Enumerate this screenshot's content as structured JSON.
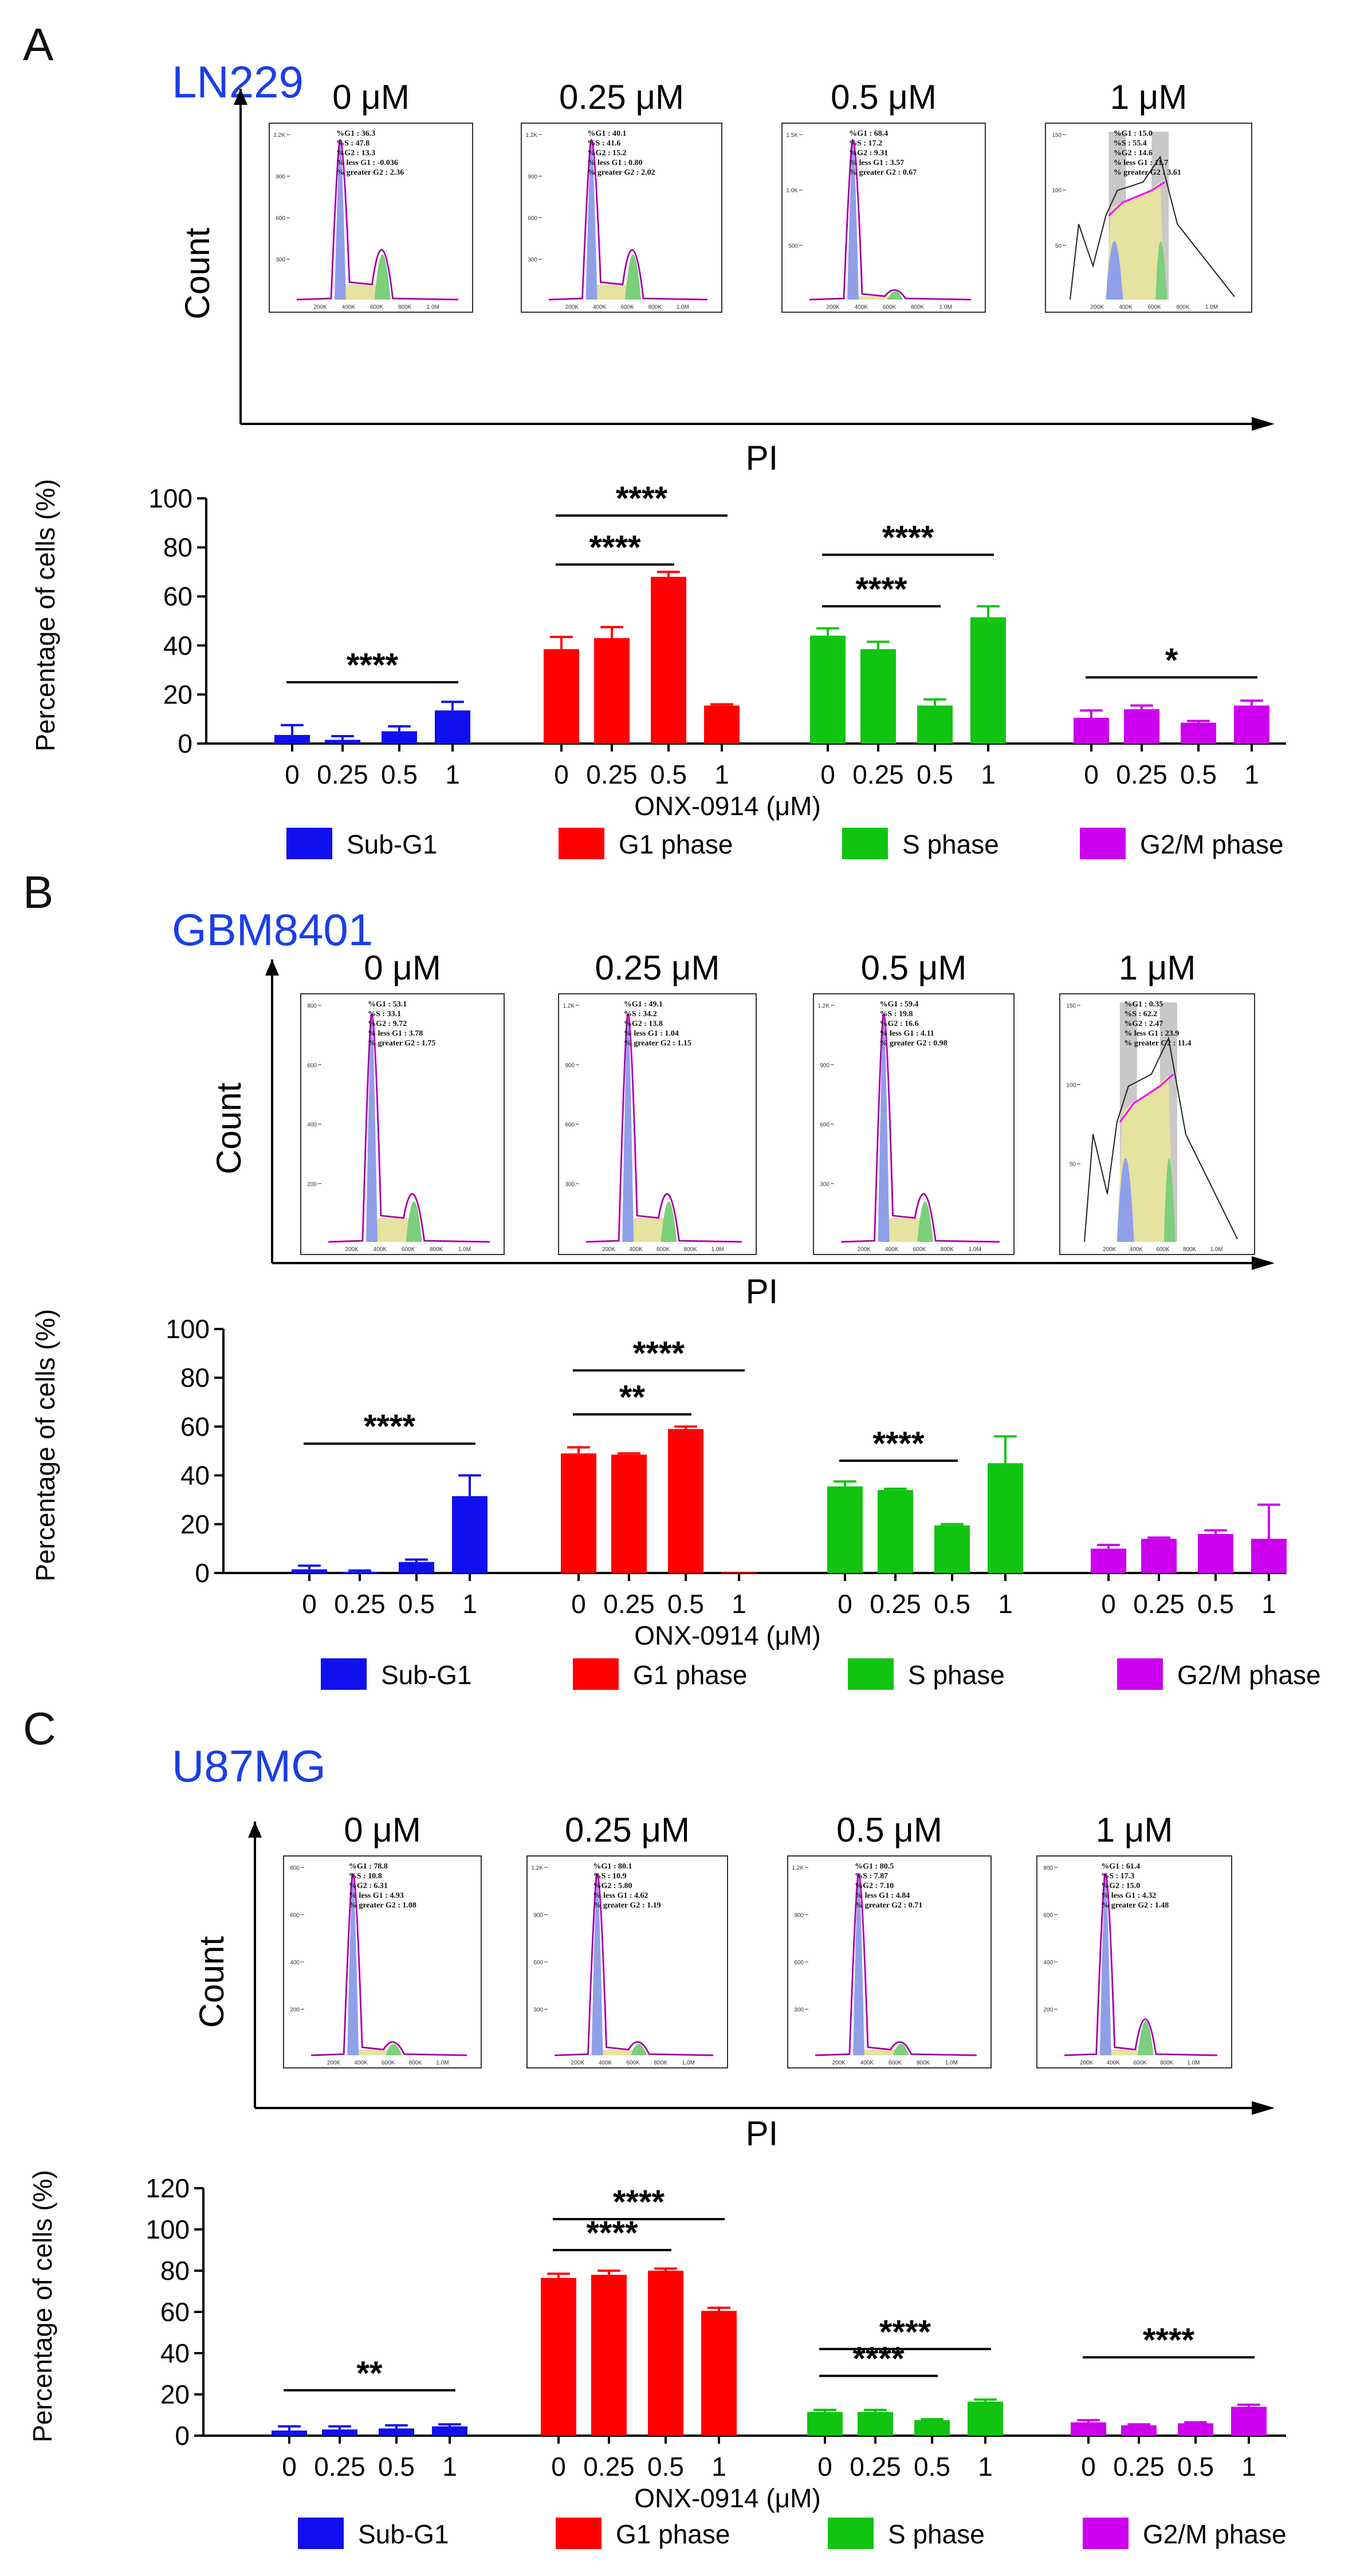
{
  "colors": {
    "subg1": "#1010ee",
    "g1": "#ff0000",
    "s": "#11c411",
    "g2m": "#cc00ee",
    "cellline": "#1a3ee6",
    "hist_magenta": "#ff00ff",
    "fill_blue": "#8fa0e8",
    "fill_yellow": "#e6e2a0",
    "fill_green": "#7ccf7c"
  },
  "legend": [
    {
      "key": "subg1",
      "label": "Sub-G1"
    },
    {
      "key": "g1",
      "label": "G1 phase"
    },
    {
      "key": "s",
      "label": "S phase"
    },
    {
      "key": "g2m",
      "label": "G2/M phase"
    }
  ],
  "axis_labels": {
    "count": "Count",
    "pi": "PI",
    "ylabel": "Percentage of cells (%)",
    "xlabel": "ONX-0914 (μM)"
  },
  "panels": [
    {
      "letter": "A",
      "cell_line": "LN229",
      "histograms": [
        {
          "dose": "0 μM",
          "stats": [
            "%G1 : 36.3",
            "%S : 47.8",
            "%G2 : 13.3",
            "% less G1 : -0.036",
            "% greater G2 : 2.36"
          ],
          "yticks": [
            "1.2K",
            "900",
            "600",
            "300"
          ]
        },
        {
          "dose": "0.25 μM",
          "stats": [
            "%G1 : 40.1",
            "%S : 41.6",
            "%G2 : 15.2",
            "% less G1 : 0.80",
            "% greater G2 : 2.02"
          ],
          "yticks": [
            "1.2K",
            "900",
            "600",
            "300"
          ]
        },
        {
          "dose": "0.5 μM",
          "stats": [
            "%G1 : 68.4",
            "%S : 17.2",
            "%G2 : 9.31",
            "% less G1 : 3.57",
            "% greater G2 : 0.67"
          ],
          "yticks": [
            "1.5K",
            "1.0K",
            "500"
          ]
        },
        {
          "dose": "1 μM",
          "stats": [
            "%G1 : 15.0",
            "%S : 55.4",
            "%G2 : 14.6",
            "% less G1 : 11.7",
            "% greater G2 : 3.61"
          ],
          "yticks": [
            "150",
            "100",
            "50"
          ]
        }
      ],
      "xticks": [
        "200K",
        "400K",
        "600K",
        "800K",
        "1.0M"
      ],
      "chart_data": {
        "type": "bar",
        "categories": [
          "0",
          "0.25",
          "0.5",
          "1"
        ],
        "series": [
          {
            "name": "Sub-G1",
            "values": [
              3.5,
              1.5,
              5,
              13.5
            ],
            "errors": [
              4,
              1.5,
              2,
              3.5
            ]
          },
          {
            "name": "G1 phase",
            "values": [
              38.5,
              43,
              68,
              15.5
            ],
            "errors": [
              5,
              4.5,
              2,
              0.5
            ]
          },
          {
            "name": "S phase",
            "values": [
              44,
              38.5,
              15.5,
              51.5
            ],
            "errors": [
              3,
              3,
              2.5,
              4.5
            ]
          },
          {
            "name": "G2/M phase",
            "values": [
              10.5,
              14,
              8.5,
              15.5
            ],
            "errors": [
              3,
              1.5,
              0.7,
              2
            ]
          }
        ],
        "ylim": [
          0,
          100
        ],
        "yticks": [
          0,
          20,
          40,
          60,
          80,
          100
        ],
        "significance": [
          {
            "series": 0,
            "from": 0,
            "to": 3,
            "label": "****",
            "y": 25
          },
          {
            "series": 1,
            "from": 0,
            "to": 2,
            "label": "****",
            "y": 73
          },
          {
            "series": 1,
            "from": 0,
            "to": 3,
            "label": "****",
            "y": 93
          },
          {
            "series": 2,
            "from": 0,
            "to": 2,
            "label": "****",
            "y": 56
          },
          {
            "series": 2,
            "from": 0,
            "to": 3,
            "label": "****",
            "y": 77
          },
          {
            "series": 3,
            "from": 0,
            "to": 3,
            "label": "*",
            "y": 27
          }
        ]
      }
    },
    {
      "letter": "B",
      "cell_line": "GBM8401",
      "histograms": [
        {
          "dose": "0 μM",
          "stats": [
            "%G1 : 53.1",
            "%S : 33.1",
            "%G2 : 9.72",
            "% less G1 : 3.78",
            "% greater G2 : 1.75"
          ],
          "yticks": [
            "800",
            "600",
            "400",
            "200"
          ]
        },
        {
          "dose": "0.25 μM",
          "stats": [
            "%G1 : 49.1",
            "%S : 34.2",
            "%G2 : 13.8",
            "% less G1 : 1.04",
            "% greater G2 : 1.15"
          ],
          "yticks": [
            "1.2K",
            "900",
            "600",
            "300"
          ]
        },
        {
          "dose": "0.5 μM",
          "stats": [
            "%G1 : 59.4",
            "%S : 19.8",
            "%G2 : 16.6",
            "% less G1 : 4.11",
            "% greater G2 : 0.98"
          ],
          "yticks": [
            "1.2K",
            "900",
            "600",
            "300"
          ]
        },
        {
          "dose": "1 μM",
          "stats": [
            "%G1 : 0.35",
            "%S : 62.2",
            "%G2 : 2.47",
            "% less G1 : 23.9",
            "% greater G2 : 11.4"
          ],
          "yticks": [
            "150",
            "100",
            "50"
          ]
        }
      ],
      "xticks": [
        "200K",
        "400K",
        "600K",
        "800K",
        "1.0M"
      ],
      "chart_data": {
        "type": "bar",
        "categories": [
          "0",
          "0.25",
          "0.5",
          "1"
        ],
        "series": [
          {
            "name": "Sub-G1",
            "values": [
              1.5,
              0.5,
              4.5,
              31.5
            ],
            "errors": [
              1.5,
              0.5,
              1,
              8.5
            ]
          },
          {
            "name": "G1 phase",
            "values": [
              49,
              48.5,
              59,
              0.3
            ],
            "errors": [
              2.5,
              0.5,
              1,
              0
            ]
          },
          {
            "name": "S phase",
            "values": [
              35.5,
              34,
              19.5,
              45
            ],
            "errors": [
              2,
              0.5,
              0.5,
              11
            ]
          },
          {
            "name": "G2/M phase",
            "values": [
              10,
              14,
              16,
              14
            ],
            "errors": [
              1.5,
              0.5,
              1.5,
              14
            ]
          }
        ],
        "ylim": [
          0,
          100
        ],
        "yticks": [
          0,
          20,
          40,
          60,
          80,
          100
        ],
        "significance": [
          {
            "series": 0,
            "from": 0,
            "to": 3,
            "label": "****",
            "y": 53
          },
          {
            "series": 1,
            "from": 0,
            "to": 2,
            "label": "**",
            "y": 65
          },
          {
            "series": 1,
            "from": 0,
            "to": 3,
            "label": "****",
            "y": 83
          },
          {
            "series": 2,
            "from": 0,
            "to": 2,
            "label": "****",
            "y": 46
          }
        ]
      }
    },
    {
      "letter": "C",
      "cell_line": "U87MG",
      "histograms": [
        {
          "dose": "0 μM",
          "stats": [
            "%G1 : 78.8",
            "%S : 10.8",
            "%G2 : 6.31",
            "% less G1 : 4.93",
            "% greater G2 : 1.08"
          ],
          "yticks": [
            "800",
            "600",
            "400",
            "200"
          ]
        },
        {
          "dose": "0.25 μM",
          "stats": [
            "%G1 : 80.1",
            "%S : 10.9",
            "%G2 : 5.80",
            "% less G1 : 4.62",
            "% greater G2 : 1.19"
          ],
          "yticks": [
            "1.2K",
            "900",
            "600",
            "300"
          ]
        },
        {
          "dose": "0.5 μM",
          "stats": [
            "%G1 : 80.5",
            "%S : 7.87",
            "%G2 : 7.10",
            "% less G1 : 4.84",
            "% greater G2 : 0.71"
          ],
          "yticks": [
            "1.2K",
            "900",
            "600",
            "300"
          ]
        },
        {
          "dose": "1 μM",
          "stats": [
            "%G1 : 61.4",
            "%S : 17.3",
            "%G2 : 15.0",
            "% less G1 : 4.32",
            "% greater G2 : 1.48"
          ],
          "yticks": [
            "800",
            "600",
            "400",
            "200"
          ]
        }
      ],
      "xticks": [
        "200K",
        "400K",
        "600K",
        "800K",
        "1.0M"
      ],
      "chart_data": {
        "type": "bar",
        "categories": [
          "0",
          "0.25",
          "0.5",
          "1"
        ],
        "series": [
          {
            "name": "Sub-G1",
            "values": [
              2.5,
              3,
              3.5,
              4.5
            ],
            "errors": [
              2,
              1.5,
              1.5,
              1
            ]
          },
          {
            "name": "G1 phase",
            "values": [
              76.5,
              78,
              80,
              60.5
            ],
            "errors": [
              2,
              2,
              1,
              1.5
            ]
          },
          {
            "name": "S phase",
            "values": [
              11.5,
              11.5,
              7.5,
              16.5
            ],
            "errors": [
              1,
              1,
              0.5,
              1
            ]
          },
          {
            "name": "G2/M phase",
            "values": [
              6.5,
              5,
              6,
              14
            ],
            "errors": [
              1,
              0.5,
              0.5,
              1
            ]
          }
        ],
        "ylim": [
          0,
          120
        ],
        "yticks": [
          0,
          20,
          40,
          60,
          80,
          100,
          120
        ],
        "significance": [
          {
            "series": 0,
            "from": 0,
            "to": 3,
            "label": "**",
            "y": 22
          },
          {
            "series": 1,
            "from": 0,
            "to": 2,
            "label": "****",
            "y": 90
          },
          {
            "series": 1,
            "from": 0,
            "to": 3,
            "label": "****",
            "y": 105
          },
          {
            "series": 2,
            "from": 0,
            "to": 2,
            "label": "****",
            "y": 29
          },
          {
            "series": 2,
            "from": 0,
            "to": 3,
            "label": "****",
            "y": 42
          },
          {
            "series": 3,
            "from": 0,
            "to": 3,
            "label": "****",
            "y": 38
          }
        ]
      }
    }
  ]
}
